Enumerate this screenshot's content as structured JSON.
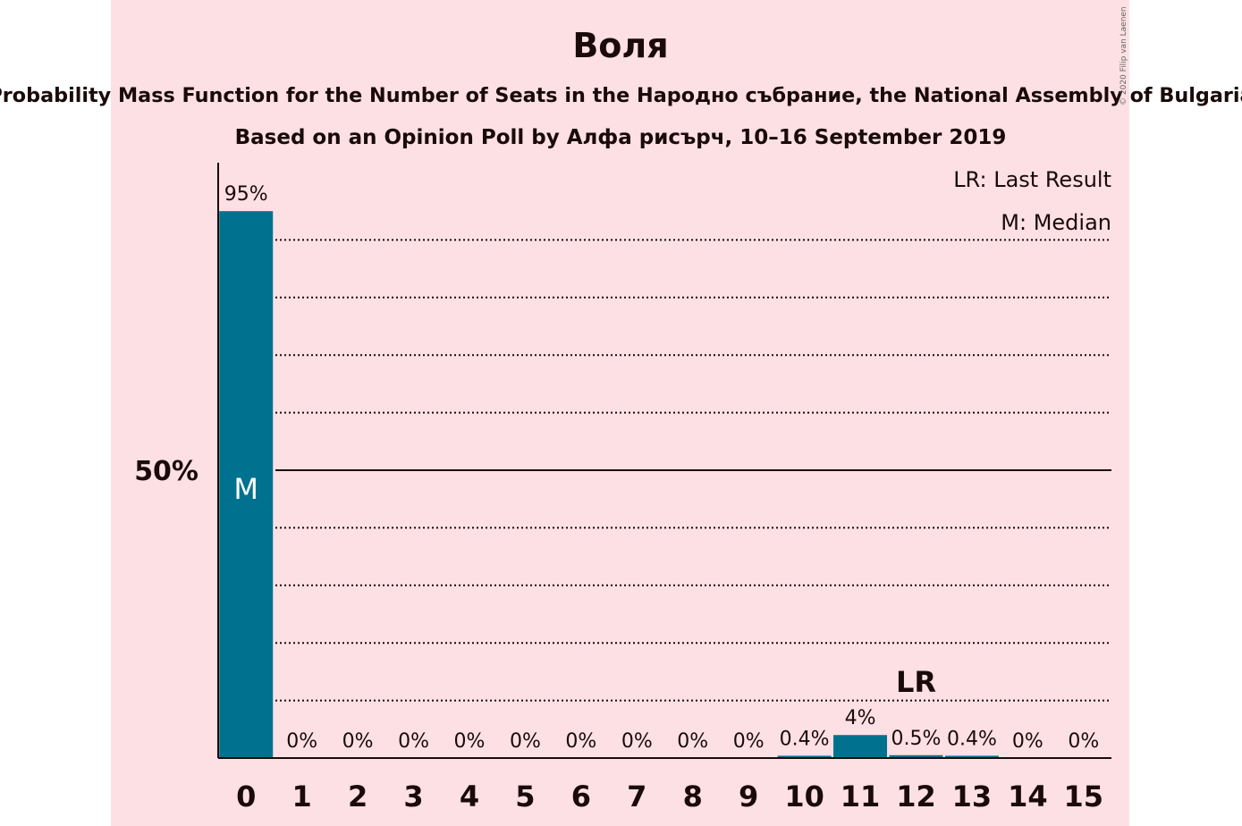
{
  "chart_data": {
    "type": "bar",
    "title": "Воля",
    "subtitle": "Probability Mass Function for the Number of Seats in the Народно събрание, the National Assembly of Bulgaria",
    "subtitle2": "Based on an Opinion Poll by Алфа рисърч, 10–16 September 2019",
    "copyright": "© 2020 Filip van Laenen",
    "categories": [
      "0",
      "1",
      "2",
      "3",
      "4",
      "5",
      "6",
      "7",
      "8",
      "9",
      "10",
      "11",
      "12",
      "13",
      "14",
      "15"
    ],
    "values": [
      95,
      0,
      0,
      0,
      0,
      0,
      0,
      0,
      0,
      0,
      0.4,
      4,
      0.5,
      0.4,
      0,
      0
    ],
    "value_labels": [
      "95%",
      "0%",
      "0%",
      "0%",
      "0%",
      "0%",
      "0%",
      "0%",
      "0%",
      "0%",
      "0.4%",
      "4%",
      "0.5%",
      "0.4%",
      "0%",
      "0%"
    ],
    "ylim": [
      0,
      100
    ],
    "ytick_label": "50%",
    "ytick_value": 50,
    "gridlines": [
      10,
      20,
      30,
      40,
      60,
      70,
      80,
      90
    ],
    "median_index": 0,
    "median_label": "M",
    "last_result_index": 12,
    "last_result_label": "LR",
    "legend": [
      "LR: Last Result",
      "M: Median"
    ],
    "legend_position": "top-right",
    "bar_color": "#00728f",
    "text_color": "#1a0a0a",
    "background_color": "#fde0e4"
  }
}
